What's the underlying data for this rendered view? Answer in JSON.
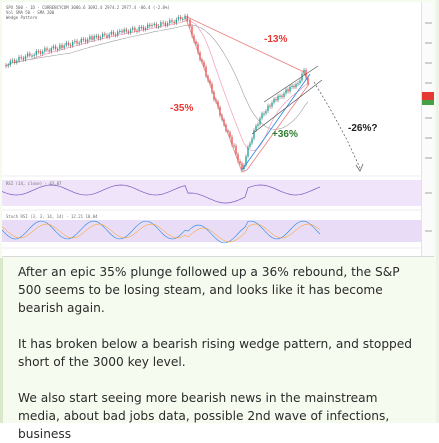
{
  "chart": {
    "header_lines": [
      "SPX 500 · 1D · CURRENCYCOM  3086.6  3092.4  2974.2  2977.4  -86.4 (-2.8%)",
      "Vol  SMA 50  ·  SMA 200",
      "Wedge  Pattern"
    ],
    "rsi_label": "RSI (14, close)  ·  43.87",
    "stoch_label": "Stoch RSI (3, 3, 14, 14)  ·  12.21  10.04",
    "annotations": {
      "drop_small": "-13%",
      "plunge": "-35%",
      "rebound": "+36%",
      "projection": "-26%?"
    },
    "colors": {
      "price": "#2a2a2a",
      "up_candle": "#26a69a",
      "down_candle": "#ef5350",
      "annotation_text": "#e53935",
      "wedge_line": "#e57373",
      "rebound_line": "#1e88e5",
      "sma": "#9e9e9e",
      "rsi_line": "#7e57c2",
      "band_fill": "#e9dcf7",
      "projection": "#666666"
    }
  },
  "article": {
    "paragraphs": [
      "After an epic 35% plunge followed up a 36% rebound, the S&P 500 seems to be losing steam, and looks like it has become bearish again.",
      "It has broken below a bearish rising wedge pattern, and stopped short of the 3000 key level.",
      "We also start seeing more bearish news in the mainstream media, about bad jobs data, possible 2nd wave of infections, business"
    ]
  }
}
